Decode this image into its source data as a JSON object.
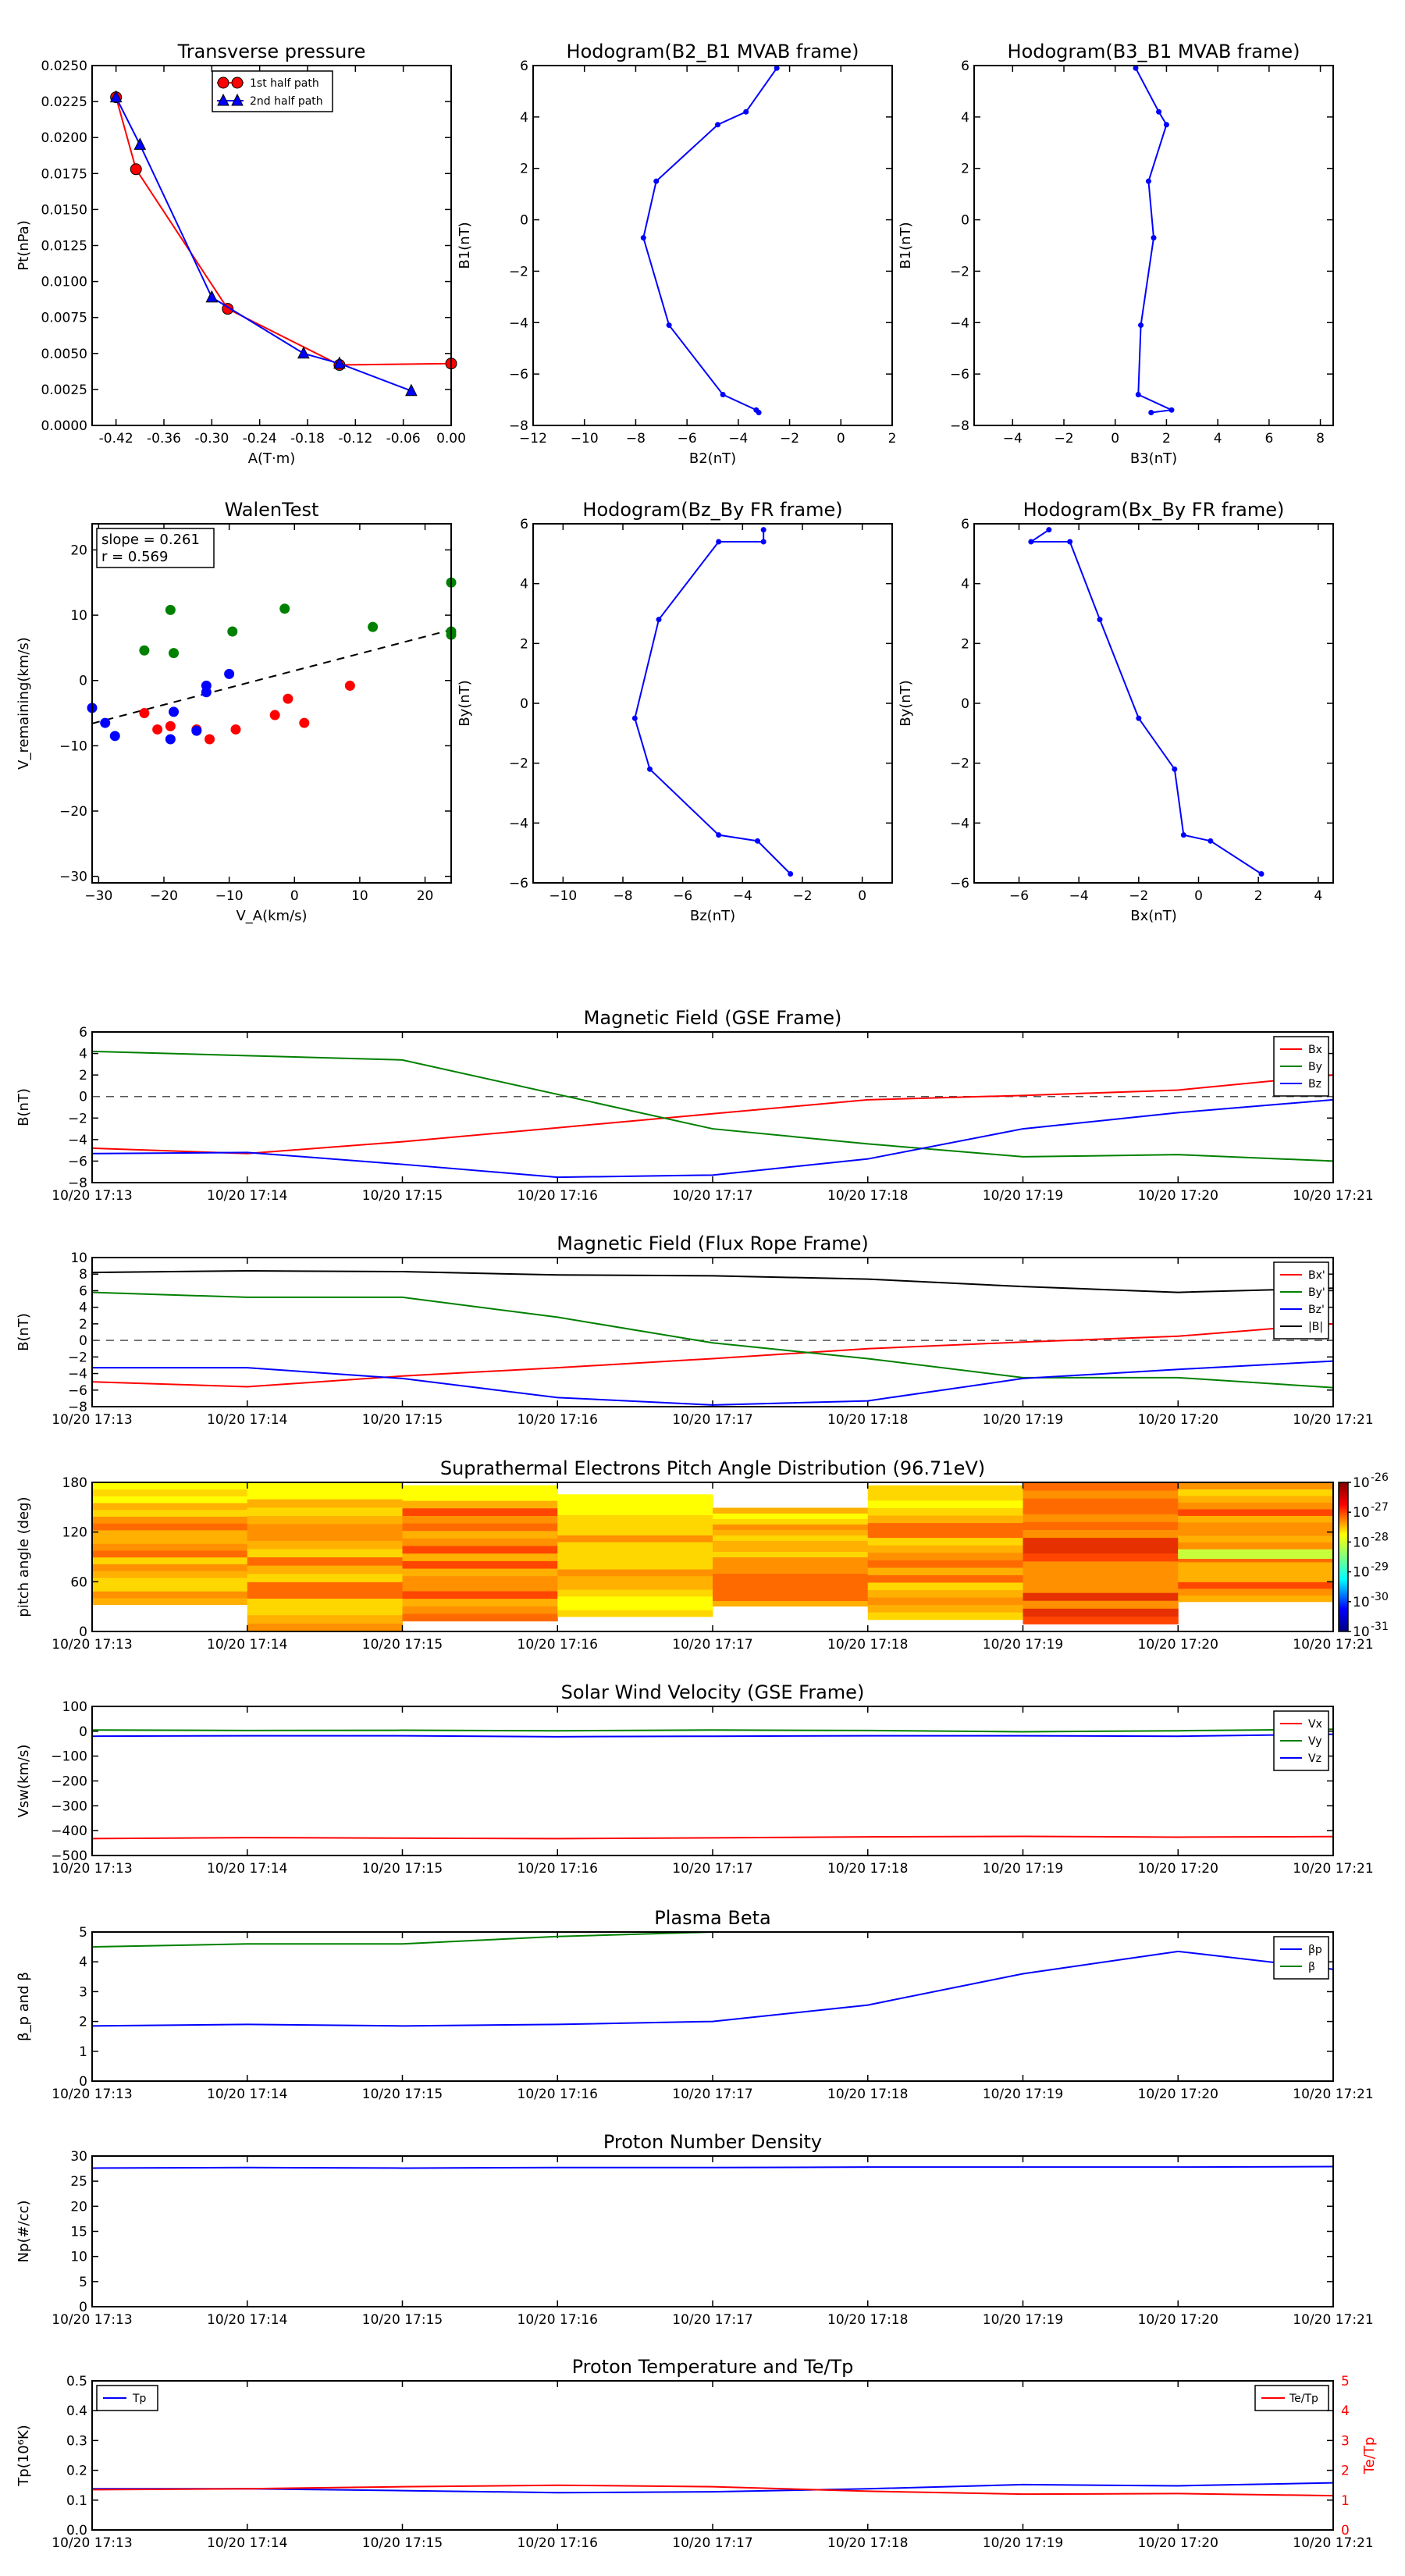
{
  "colors": {
    "red": "#ff0000",
    "green": "#008000",
    "blue": "#0000ff",
    "black": "#000000",
    "dash": "#555555",
    "plot_bg": "#ffffff"
  },
  "chart_data": [
    {
      "id": "tp",
      "type": "line",
      "title": "Transverse pressure",
      "xlabel": "A(T·m)",
      "ylabel": "Pt(nPa)",
      "xlim": [
        -0.45,
        0.0
      ],
      "ylim": [
        0.0,
        0.025
      ],
      "xticks": [
        -0.42,
        -0.36,
        -0.3,
        -0.24,
        -0.18,
        -0.12,
        -0.06,
        0.0
      ],
      "xtick_labels": [
        "-0.42",
        "-0.36",
        "-0.30",
        "-0.24",
        "-0.18",
        "-0.12",
        "-0.06",
        "0.00"
      ],
      "yticks": [
        0,
        0.0025,
        0.005,
        0.0075,
        0.01,
        0.0125,
        0.015,
        0.0175,
        0.02,
        0.0225,
        0.025
      ],
      "ytick_labels": [
        "0.0000",
        "0.0025",
        "0.0050",
        "0.0075",
        "0.0100",
        "0.0125",
        "0.0150",
        "0.0175",
        "0.0200",
        "0.0225",
        "0.0250"
      ],
      "legend": {
        "position": "top-center",
        "entries": [
          "1st half path",
          "2nd half path"
        ]
      },
      "series": [
        {
          "name": "1st half path",
          "color": "red",
          "marker": "circle",
          "x": [
            -0.42,
            -0.395,
            -0.28,
            -0.14,
            0.0
          ],
          "y": [
            0.0228,
            0.0178,
            0.0081,
            0.0042,
            0.0043
          ]
        },
        {
          "name": "2nd half path",
          "color": "blue",
          "marker": "triangle",
          "x": [
            -0.42,
            -0.39,
            -0.3,
            -0.185,
            -0.14,
            -0.05
          ],
          "y": [
            0.0228,
            0.0195,
            0.0089,
            0.005,
            0.0043,
            0.0024
          ]
        }
      ]
    },
    {
      "id": "h21",
      "type": "line",
      "title": "Hodogram(B2_B1 MVAB frame)",
      "xlabel": "B2(nT)",
      "ylabel": "B1(nT)",
      "xlim": [
        -12,
        2
      ],
      "ylim": [
        -8,
        6
      ],
      "xticks": [
        -12,
        -10,
        -8,
        -6,
        -4,
        -2,
        0,
        2
      ],
      "xtick_labels": [
        "−12",
        "−10",
        "−8",
        "−6",
        "−4",
        "−2",
        "0",
        "2"
      ],
      "yticks": [
        -8,
        -6,
        -4,
        -2,
        0,
        2,
        4,
        6
      ],
      "ytick_labels": [
        "−8",
        "−6",
        "−4",
        "−2",
        "0",
        "2",
        "4",
        "6"
      ],
      "series": [
        {
          "name": "hodogram",
          "color": "blue",
          "marker": "dot",
          "x": [
            -2.5,
            -3.7,
            -4.8,
            -7.2,
            -7.7,
            -6.7,
            -4.6,
            -3.3,
            -3.2
          ],
          "y": [
            5.9,
            4.2,
            3.7,
            1.5,
            -0.7,
            -4.1,
            -6.8,
            -7.4,
            -7.5
          ]
        }
      ]
    },
    {
      "id": "h31",
      "type": "line",
      "title": "Hodogram(B3_B1 MVAB frame)",
      "xlabel": "B3(nT)",
      "ylabel": "B1(nT)",
      "xlim": [
        -5.5,
        8.5
      ],
      "ylim": [
        -8,
        6
      ],
      "xticks": [
        -4,
        -2,
        0,
        2,
        4,
        6,
        8
      ],
      "xtick_labels": [
        "−4",
        "−2",
        "0",
        "2",
        "4",
        "6",
        "8"
      ],
      "yticks": [
        -8,
        -6,
        -4,
        -2,
        0,
        2,
        4,
        6
      ],
      "ytick_labels": [
        "−8",
        "−6",
        "−4",
        "−2",
        "0",
        "2",
        "4",
        "6"
      ],
      "series": [
        {
          "name": "hodogram",
          "color": "blue",
          "marker": "dot",
          "x": [
            0.8,
            1.7,
            2.0,
            1.3,
            1.5,
            1.0,
            0.9,
            2.2,
            1.4
          ],
          "y": [
            5.9,
            4.2,
            3.7,
            1.5,
            -0.7,
            -4.1,
            -6.8,
            -7.4,
            -7.5
          ]
        }
      ]
    },
    {
      "id": "walen",
      "type": "scatter",
      "title": "WalenTest",
      "xlabel": "V_A(km/s)",
      "ylabel": "V_remaining(km/s)",
      "xlim": [
        -31,
        24
      ],
      "ylim": [
        -31,
        24
      ],
      "xticks": [
        -30,
        -20,
        -10,
        0,
        10,
        20
      ],
      "xtick_labels": [
        "−30",
        "−20",
        "−10",
        "0",
        "10",
        "20"
      ],
      "yticks": [
        -30,
        -20,
        -10,
        0,
        10,
        20
      ],
      "ytick_labels": [
        "−30",
        "−20",
        "−10",
        "0",
        "10",
        "20"
      ],
      "annotation": {
        "slope": "slope = 0.261",
        "r": "r = 0.569"
      },
      "fit": {
        "slope": 0.261,
        "intercept": 1.5,
        "style": "dashed"
      },
      "series": [
        {
          "name": "x",
          "color": "red",
          "x": [
            -23,
            -21,
            -19,
            -15,
            -13,
            -9,
            -3,
            -1,
            1.5,
            8.5
          ],
          "y": [
            -5,
            -7.5,
            -7,
            -7.5,
            -9,
            -7.5,
            -5.3,
            -2.8,
            -6.5,
            -0.8
          ]
        },
        {
          "name": "y",
          "color": "green",
          "x": [
            -23,
            -19,
            -18.5,
            -9.5,
            -1.5,
            12,
            24,
            24,
            25
          ],
          "y": [
            4.6,
            10.8,
            4.2,
            7.5,
            11,
            8.2,
            7.5,
            7,
            15
          ]
        },
        {
          "name": "z",
          "color": "blue",
          "x": [
            -31,
            -29,
            -27.5,
            -19,
            -18.5,
            -15,
            -13.5,
            -13.5,
            -10
          ],
          "y": [
            -4.2,
            -6.5,
            -8.5,
            -9,
            -4.8,
            -7.7,
            -1.8,
            -0.8,
            1
          ]
        }
      ]
    },
    {
      "id": "hzy",
      "type": "line",
      "title": "Hodogram(Bz_By FR frame)",
      "xlabel": "Bz(nT)",
      "ylabel": "By(nT)",
      "xlim": [
        -11,
        1
      ],
      "ylim": [
        -6,
        6
      ],
      "xticks": [
        -10,
        -8,
        -6,
        -4,
        -2,
        0
      ],
      "xtick_labels": [
        "−10",
        "−8",
        "−6",
        "−4",
        "−2",
        "0"
      ],
      "yticks": [
        -6,
        -4,
        -2,
        0,
        2,
        4,
        6
      ],
      "ytick_labels": [
        "−6",
        "−4",
        "−2",
        "0",
        "2",
        "4",
        "6"
      ],
      "series": [
        {
          "name": "hodogram",
          "color": "blue",
          "marker": "dot",
          "x": [
            -3.3,
            -3.3,
            -4.8,
            -6.8,
            -7.6,
            -7.1,
            -4.8,
            -3.5,
            -2.4
          ],
          "y": [
            5.8,
            5.4,
            5.4,
            2.8,
            -0.5,
            -2.2,
            -4.4,
            -4.6,
            -5.7
          ]
        }
      ]
    },
    {
      "id": "hxy",
      "type": "line",
      "title": "Hodogram(Bx_By FR frame)",
      "xlabel": "Bx(nT)",
      "ylabel": "By(nT)",
      "xlim": [
        -7.5,
        4.5
      ],
      "ylim": [
        -6,
        6
      ],
      "xticks": [
        -6,
        -4,
        -2,
        0,
        2,
        4
      ],
      "xtick_labels": [
        "−6",
        "−4",
        "−2",
        "0",
        "2",
        "4"
      ],
      "yticks": [
        -6,
        -4,
        -2,
        0,
        2,
        4,
        6
      ],
      "ytick_labels": [
        "−6",
        "−4",
        "−2",
        "0",
        "2",
        "4",
        "6"
      ],
      "series": [
        {
          "name": "hodogram",
          "color": "blue",
          "marker": "dot",
          "x": [
            -5.0,
            -5.6,
            -4.3,
            -3.3,
            -2.0,
            -0.8,
            -0.5,
            0.4,
            2.1
          ],
          "y": [
            5.8,
            5.4,
            5.4,
            2.8,
            -0.5,
            -2.2,
            -4.4,
            -4.6,
            -5.7
          ]
        }
      ]
    },
    {
      "id": "bgse",
      "type": "line",
      "title": "Magnetic Field (GSE Frame)",
      "ylabel": "B(nT)",
      "ylim": [
        -8,
        6
      ],
      "yticks": [
        -8,
        -6,
        -4,
        -2,
        0,
        2,
        4,
        6
      ],
      "ytick_labels": [
        "−8",
        "−6",
        "−4",
        "−2",
        "0",
        "2",
        "4",
        "6"
      ],
      "zero_line": true,
      "legend": {
        "position": "top-right",
        "entries": [
          "Bx",
          "By",
          "Bz"
        ]
      },
      "series": [
        {
          "name": "Bx",
          "color": "red",
          "values": [
            -4.8,
            -5.3,
            -4.2,
            -2.9,
            -1.6,
            -0.3,
            0.1,
            0.6,
            2.0
          ]
        },
        {
          "name": "By",
          "color": "green",
          "values": [
            4.2,
            3.8,
            3.4,
            0.2,
            -3.0,
            -4.4,
            -5.6,
            -5.4,
            -6.0
          ]
        },
        {
          "name": "Bz",
          "color": "blue",
          "values": [
            -5.3,
            -5.2,
            -6.3,
            -7.5,
            -7.3,
            -5.8,
            -3.0,
            -1.5,
            -0.3
          ]
        }
      ]
    },
    {
      "id": "bfr",
      "type": "line",
      "title": "Magnetic Field (Flux Rope Frame)",
      "ylabel": "B(nT)",
      "ylim": [
        -8,
        10
      ],
      "yticks": [
        -8,
        -6,
        -4,
        -2,
        0,
        2,
        4,
        6,
        8,
        10
      ],
      "ytick_labels": [
        "−8",
        "−6",
        "−4",
        "−2",
        "0",
        "2",
        "4",
        "6",
        "8",
        "10"
      ],
      "zero_line": true,
      "legend": {
        "position": "top-right",
        "entries": [
          "Bx'",
          "By'",
          "Bz'",
          "|B|"
        ]
      },
      "series": [
        {
          "name": "Bx'",
          "color": "red",
          "values": [
            -5.0,
            -5.6,
            -4.3,
            -3.3,
            -2.2,
            -1.0,
            -0.2,
            0.5,
            2.0
          ]
        },
        {
          "name": "By'",
          "color": "green",
          "values": [
            5.8,
            5.2,
            5.2,
            2.8,
            -0.3,
            -2.2,
            -4.5,
            -4.5,
            -5.7
          ]
        },
        {
          "name": "Bz'",
          "color": "blue",
          "values": [
            -3.3,
            -3.3,
            -4.6,
            -6.9,
            -7.8,
            -7.3,
            -4.6,
            -3.5,
            -2.5
          ]
        },
        {
          "name": "|B|",
          "color": "black",
          "values": [
            8.2,
            8.4,
            8.3,
            7.9,
            7.8,
            7.4,
            6.5,
            5.8,
            6.3
          ]
        }
      ]
    },
    {
      "id": "pad",
      "type": "heatmap",
      "title": "Suprathermal Electrons Pitch Angle Distribution (96.71eV)",
      "ylabel": "pitch angle (deg)",
      "ylim": [
        0,
        180
      ],
      "yticks": [
        0,
        60,
        120,
        180
      ],
      "ytick_labels": [
        "0",
        "60",
        "120",
        "180"
      ],
      "colorbar": {
        "ticks": [
          "10",
          "10",
          "10",
          "10",
          "10",
          "10"
        ],
        "exponents": [
          "-26",
          "-27",
          "-28",
          "-29",
          "-30",
          "-31"
        ]
      }
    },
    {
      "id": "vsw",
      "type": "line",
      "title": "Solar Wind Velocity (GSE Frame)",
      "ylabel": "Vsw(km/s)",
      "ylim": [
        -500,
        100
      ],
      "yticks": [
        -500,
        -400,
        -300,
        -200,
        -100,
        0,
        100
      ],
      "ytick_labels": [
        "−500",
        "−400",
        "−300",
        "−200",
        "−100",
        "0",
        "100"
      ],
      "legend": {
        "position": "top-right",
        "entries": [
          "Vx",
          "Vy",
          "Vz"
        ]
      },
      "series": [
        {
          "name": "Vx",
          "color": "red",
          "values": [
            -432,
            -428,
            -430,
            -432,
            -429,
            -425,
            -423,
            -426,
            -424
          ]
        },
        {
          "name": "Vy",
          "color": "green",
          "values": [
            5,
            3,
            4,
            2,
            5,
            3,
            -2,
            2,
            8
          ]
        },
        {
          "name": "Vz",
          "color": "blue",
          "values": [
            -20,
            -18,
            -18,
            -22,
            -20,
            -18,
            -18,
            -20,
            -12
          ]
        }
      ]
    },
    {
      "id": "beta",
      "type": "line",
      "title": "Plasma Beta",
      "ylabel": "β_p and β",
      "ylim": [
        0,
        5
      ],
      "yticks": [
        0,
        1,
        2,
        3,
        4,
        5
      ],
      "ytick_labels": [
        "0",
        "1",
        "2",
        "3",
        "4",
        "5"
      ],
      "legend": {
        "position": "top-right",
        "entries": [
          "βp",
          "β"
        ]
      },
      "series": [
        {
          "name": "βp",
          "color": "blue",
          "values": [
            1.85,
            1.9,
            1.85,
            1.9,
            2.0,
            2.55,
            3.6,
            4.35,
            3.75
          ]
        },
        {
          "name": "β",
          "color": "green",
          "values": [
            4.5,
            4.6,
            4.6,
            4.85,
            5.1,
            null,
            null,
            null,
            null
          ]
        }
      ]
    },
    {
      "id": "np",
      "type": "line",
      "title": "Proton Number Density",
      "ylabel": "Np(#/cc)",
      "ylim": [
        0,
        30
      ],
      "yticks": [
        0,
        5,
        10,
        15,
        20,
        25,
        30
      ],
      "ytick_labels": [
        "0",
        "5",
        "10",
        "15",
        "20",
        "25",
        "30"
      ],
      "series": [
        {
          "name": "Np",
          "color": "blue",
          "values": [
            27.6,
            27.7,
            27.6,
            27.7,
            27.7,
            27.8,
            27.8,
            27.8,
            27.9
          ]
        }
      ]
    },
    {
      "id": "tp2",
      "type": "line",
      "title": "Proton Temperature and Te/Tp",
      "ylabel": "Tp(10⁶K)",
      "ylabel_right": "Te/Tp",
      "ylim": [
        0,
        0.5
      ],
      "yticks": [
        0,
        0.1,
        0.2,
        0.3,
        0.4,
        0.5
      ],
      "ytick_labels": [
        "0.0",
        "0.1",
        "0.2",
        "0.3",
        "0.4",
        "0.5"
      ],
      "ylim_right": [
        0,
        5
      ],
      "yticks_right": [
        "0",
        "1",
        "2",
        "3",
        "4",
        "5"
      ],
      "legend_left": "Tp",
      "legend_right": "Te/Tp",
      "series": [
        {
          "name": "Tp",
          "color": "blue",
          "values": [
            0.138,
            0.138,
            0.132,
            0.125,
            0.128,
            0.138,
            0.152,
            0.148,
            0.158
          ]
        },
        {
          "name": "Te/Tp",
          "color": "red",
          "axis": "right",
          "values": [
            1.35,
            1.38,
            1.45,
            1.5,
            1.45,
            1.3,
            1.2,
            1.22,
            1.15
          ]
        }
      ]
    }
  ],
  "time_labels": [
    "10/20 17:13",
    "10/20 17:14",
    "10/20 17:15",
    "10/20 17:16",
    "10/20 17:17",
    "10/20 17:18",
    "10/20 17:19",
    "10/20 17:20",
    "10/20 17:21"
  ]
}
